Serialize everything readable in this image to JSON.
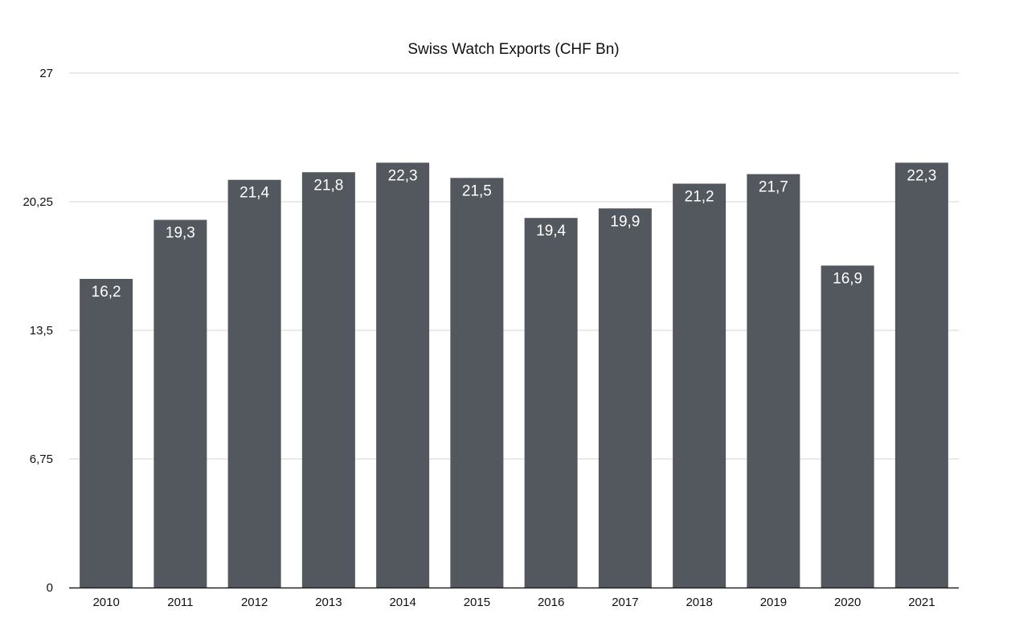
{
  "chart_data": {
    "type": "bar",
    "title": "Swiss Watch Exports (CHF Bn)",
    "xlabel": "",
    "ylabel": "",
    "categories": [
      "2010",
      "2011",
      "2012",
      "2013",
      "2014",
      "2015",
      "2016",
      "2017",
      "2018",
      "2019",
      "2020",
      "2021"
    ],
    "values": [
      16.2,
      19.3,
      21.4,
      21.8,
      22.3,
      21.5,
      19.4,
      19.9,
      21.2,
      21.7,
      16.9,
      22.3
    ],
    "value_labels": [
      "16,2",
      "19,3",
      "21,4",
      "21,8",
      "22,3",
      "21,5",
      "19,4",
      "19,9",
      "21,2",
      "21,7",
      "16,9",
      "22,3"
    ],
    "ylim": [
      0,
      27
    ],
    "yticks": [
      0,
      6.75,
      13.5,
      20.25,
      27
    ],
    "ytick_labels": [
      "0",
      "6,75",
      "13,5",
      "20,25",
      "27"
    ],
    "grid": true,
    "legend": "none",
    "colors": {
      "bar": "#53575e",
      "grid": "#d4d4d4",
      "axis": "#222222",
      "label": "#ffffff",
      "text": "#111111"
    }
  }
}
